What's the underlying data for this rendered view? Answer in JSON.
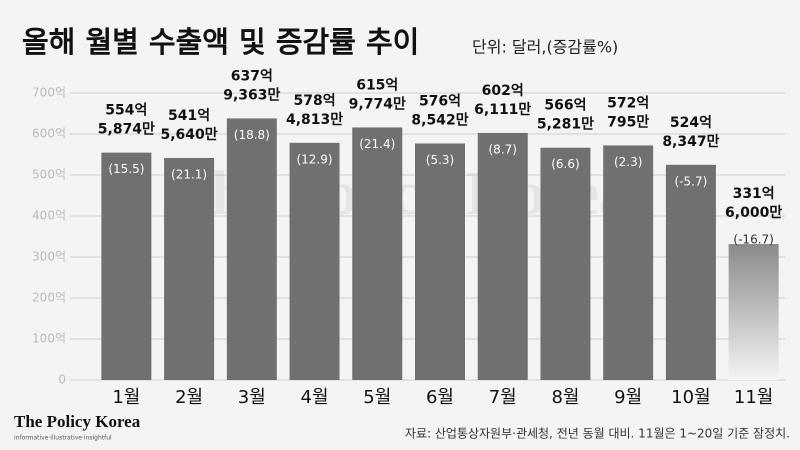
{
  "chart_data": {
    "type": "bar",
    "title": "올해 월별 수출액 및 증감률 추이",
    "subtitle": "단위: 달러,(증감률%)",
    "categories": [
      "1월",
      "2월",
      "3월",
      "4월",
      "5월",
      "6월",
      "7월",
      "8월",
      "9월",
      "10월",
      "11월"
    ],
    "values": [
      554.5874,
      541.564,
      637.9363,
      578.4813,
      615.9774,
      576.8542,
      602.6111,
      566.5281,
      572.0795,
      524.8347,
      331.6
    ],
    "value_labels": [
      [
        "554억",
        "5,874만"
      ],
      [
        "541억",
        "5,640만"
      ],
      [
        "637억",
        "9,363만"
      ],
      [
        "578억",
        "4,813만"
      ],
      [
        "615억",
        "9,774만"
      ],
      [
        "576억",
        "8,542만"
      ],
      [
        "602억",
        "6,111만"
      ],
      [
        "566억",
        "5,281만"
      ],
      [
        "572억",
        "795만"
      ],
      [
        "524억",
        "8,347만"
      ],
      [
        "331억",
        "6,000만"
      ]
    ],
    "rates": [
      15.5,
      21.1,
      18.8,
      12.9,
      21.4,
      5.3,
      8.7,
      6.6,
      2.3,
      -5.7,
      -16.7
    ],
    "rate_labels": [
      "(15.5)",
      "(21.1)",
      "(18.8)",
      "(12.9)",
      "(21.4)",
      "(5.3)",
      "(8.7)",
      "(6.6)",
      "(2.3)",
      "(-5.7)",
      "(-16.7)"
    ],
    "color": "#707070",
    "ylim": [
      0,
      700
    ],
    "yticks": [
      0,
      {
        "value": 100,
        "label": "100억"
      },
      {
        "value": 200,
        "label": "200억"
      },
      {
        "value": 300,
        "label": "300억"
      },
      {
        "value": 400,
        "label": "400억"
      },
      {
        "value": 500,
        "label": "500억"
      },
      {
        "value": 600,
        "label": "600억"
      },
      {
        "value": 700,
        "label": "700억"
      }
    ],
    "grid": true,
    "source": "자료: 산업통상자원부·관세청, 전년 동월 대비. 11월은 1~20일 기준 잠정치.",
    "logo": "The Policy Korea",
    "tagline": "informative·illustrative·insightful"
  }
}
